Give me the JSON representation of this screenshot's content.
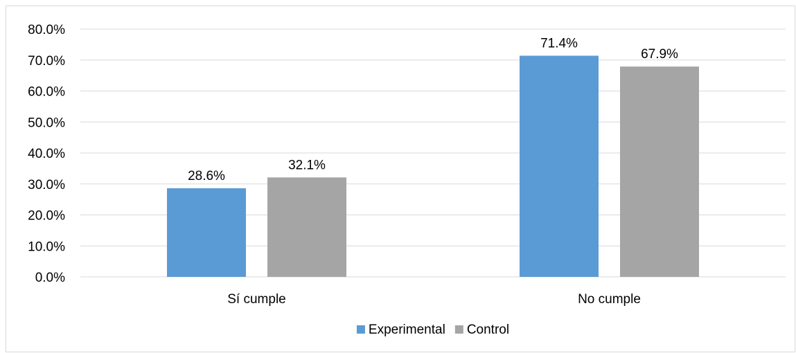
{
  "chart_data": {
    "type": "bar",
    "categories": [
      "Sí cumple",
      "No cumple"
    ],
    "series": [
      {
        "name": "Experimental",
        "values": [
          28.6,
          71.4
        ],
        "color": "#5b9bd5"
      },
      {
        "name": "Control",
        "values": [
          32.1,
          67.9
        ],
        "color": "#a5a5a5"
      }
    ],
    "data_labels": [
      [
        "28.6%",
        "71.4%"
      ],
      [
        "32.1%",
        "67.9%"
      ]
    ],
    "y_ticks": [
      "0.0%",
      "10.0%",
      "20.0%",
      "30.0%",
      "40.0%",
      "50.0%",
      "60.0%",
      "70.0%",
      "80.0%"
    ],
    "ylim": [
      0,
      80
    ],
    "y_tick_step": 10,
    "grid": true,
    "legend_position": "bottom",
    "gridline_color": "#d9d9d9"
  }
}
